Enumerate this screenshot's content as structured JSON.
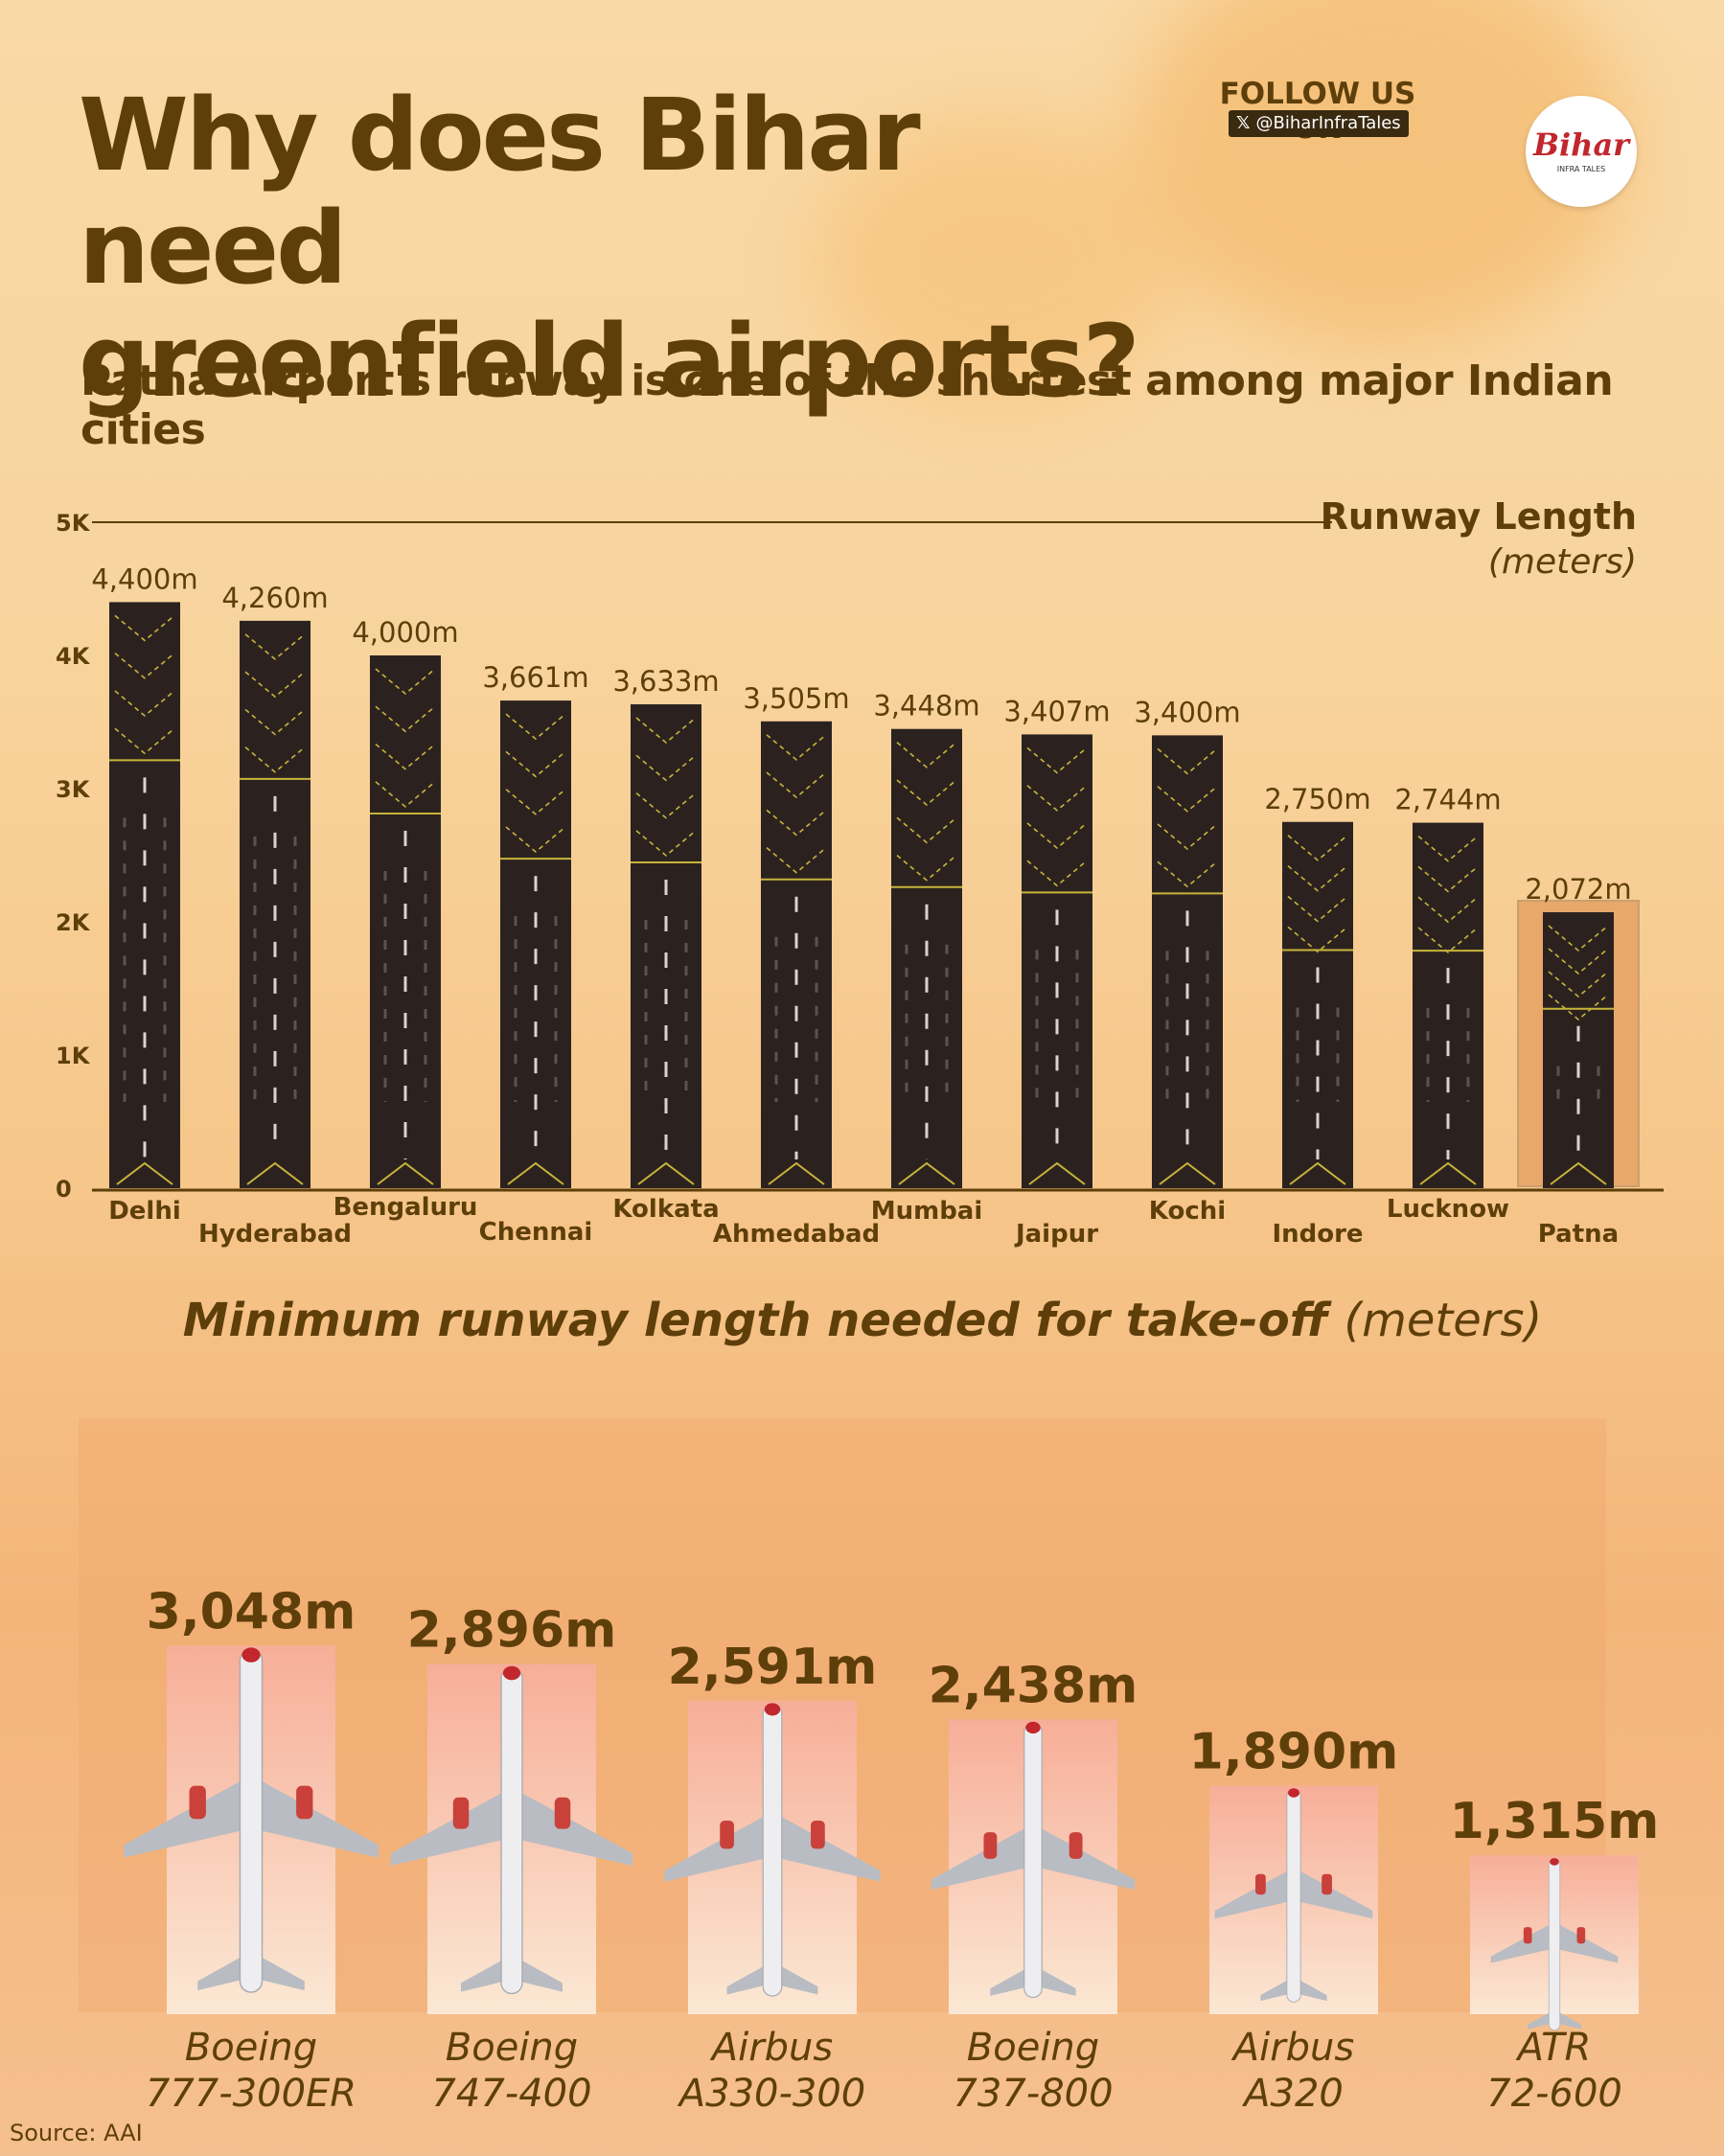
{
  "header": {
    "title_line1": "Why does Bihar need",
    "title_line2": "greenfield airports?",
    "subtitle": "Patna Airport's runway is one of the shortest among major Indian cities",
    "follow_label": "FOLLOW US ON",
    "handle": "@BiharInfraTales",
    "handle_icon": "x-icon",
    "logo_text": "Bihar",
    "logo_sub": "INFRA TALES"
  },
  "colors": {
    "text": "#5e3f0a",
    "runway": "#2b2220",
    "marking": "#c8b43a",
    "highlight": "#e8a86a",
    "plane_bar": "#f8b8a0"
  },
  "chart_data": [
    {
      "type": "bar",
      "title": "Patna Airport's runway is one of the shortest among major Indian cities",
      "ylabel": "Runway Length",
      "ylabel_unit": "(meters)",
      "ylim": [
        0,
        5000
      ],
      "yticks": [
        "0",
        "1K",
        "2K",
        "3K",
        "4K",
        "5K"
      ],
      "categories": [
        "Delhi",
        "Hyderabad",
        "Bengaluru",
        "Chennai",
        "Kolkata",
        "Ahmedabad",
        "Mumbai",
        "Jaipur",
        "Kochi",
        "Indore",
        "Lucknow",
        "Patna"
      ],
      "values": [
        4400,
        4260,
        4000,
        3661,
        3633,
        3505,
        3448,
        3407,
        3400,
        2750,
        2744,
        2072
      ],
      "value_labels": [
        "4,400m",
        "4,260m",
        "4,000m",
        "3,661m",
        "3,633m",
        "3,505m",
        "3,448m",
        "3,407m",
        "3,400m",
        "2,750m",
        "2,744m",
        "2,072m"
      ],
      "highlight": "Patna"
    },
    {
      "type": "bar",
      "title": "Minimum runway length needed for take-off",
      "title_unit": "(meters)",
      "categories": [
        "Boeing 777-300ER",
        "Boeing 747-400",
        "Airbus A330-300",
        "Boeing 737-800",
        "Airbus A320",
        "ATR 72-600"
      ],
      "category_lines": [
        [
          "Boeing",
          "777-300ER"
        ],
        [
          "Boeing",
          "747-400"
        ],
        [
          "Airbus",
          "A330-300"
        ],
        [
          "Boeing",
          "737-800"
        ],
        [
          "Airbus",
          "A320"
        ],
        [
          "ATR",
          "72-600"
        ]
      ],
      "values": [
        3048,
        2896,
        2591,
        2438,
        1890,
        1315
      ],
      "value_labels": [
        "3,048m",
        "2,896m",
        "2,591m",
        "2,438m",
        "1,890m",
        "1,315m"
      ]
    }
  ],
  "source": "Source: AAI"
}
